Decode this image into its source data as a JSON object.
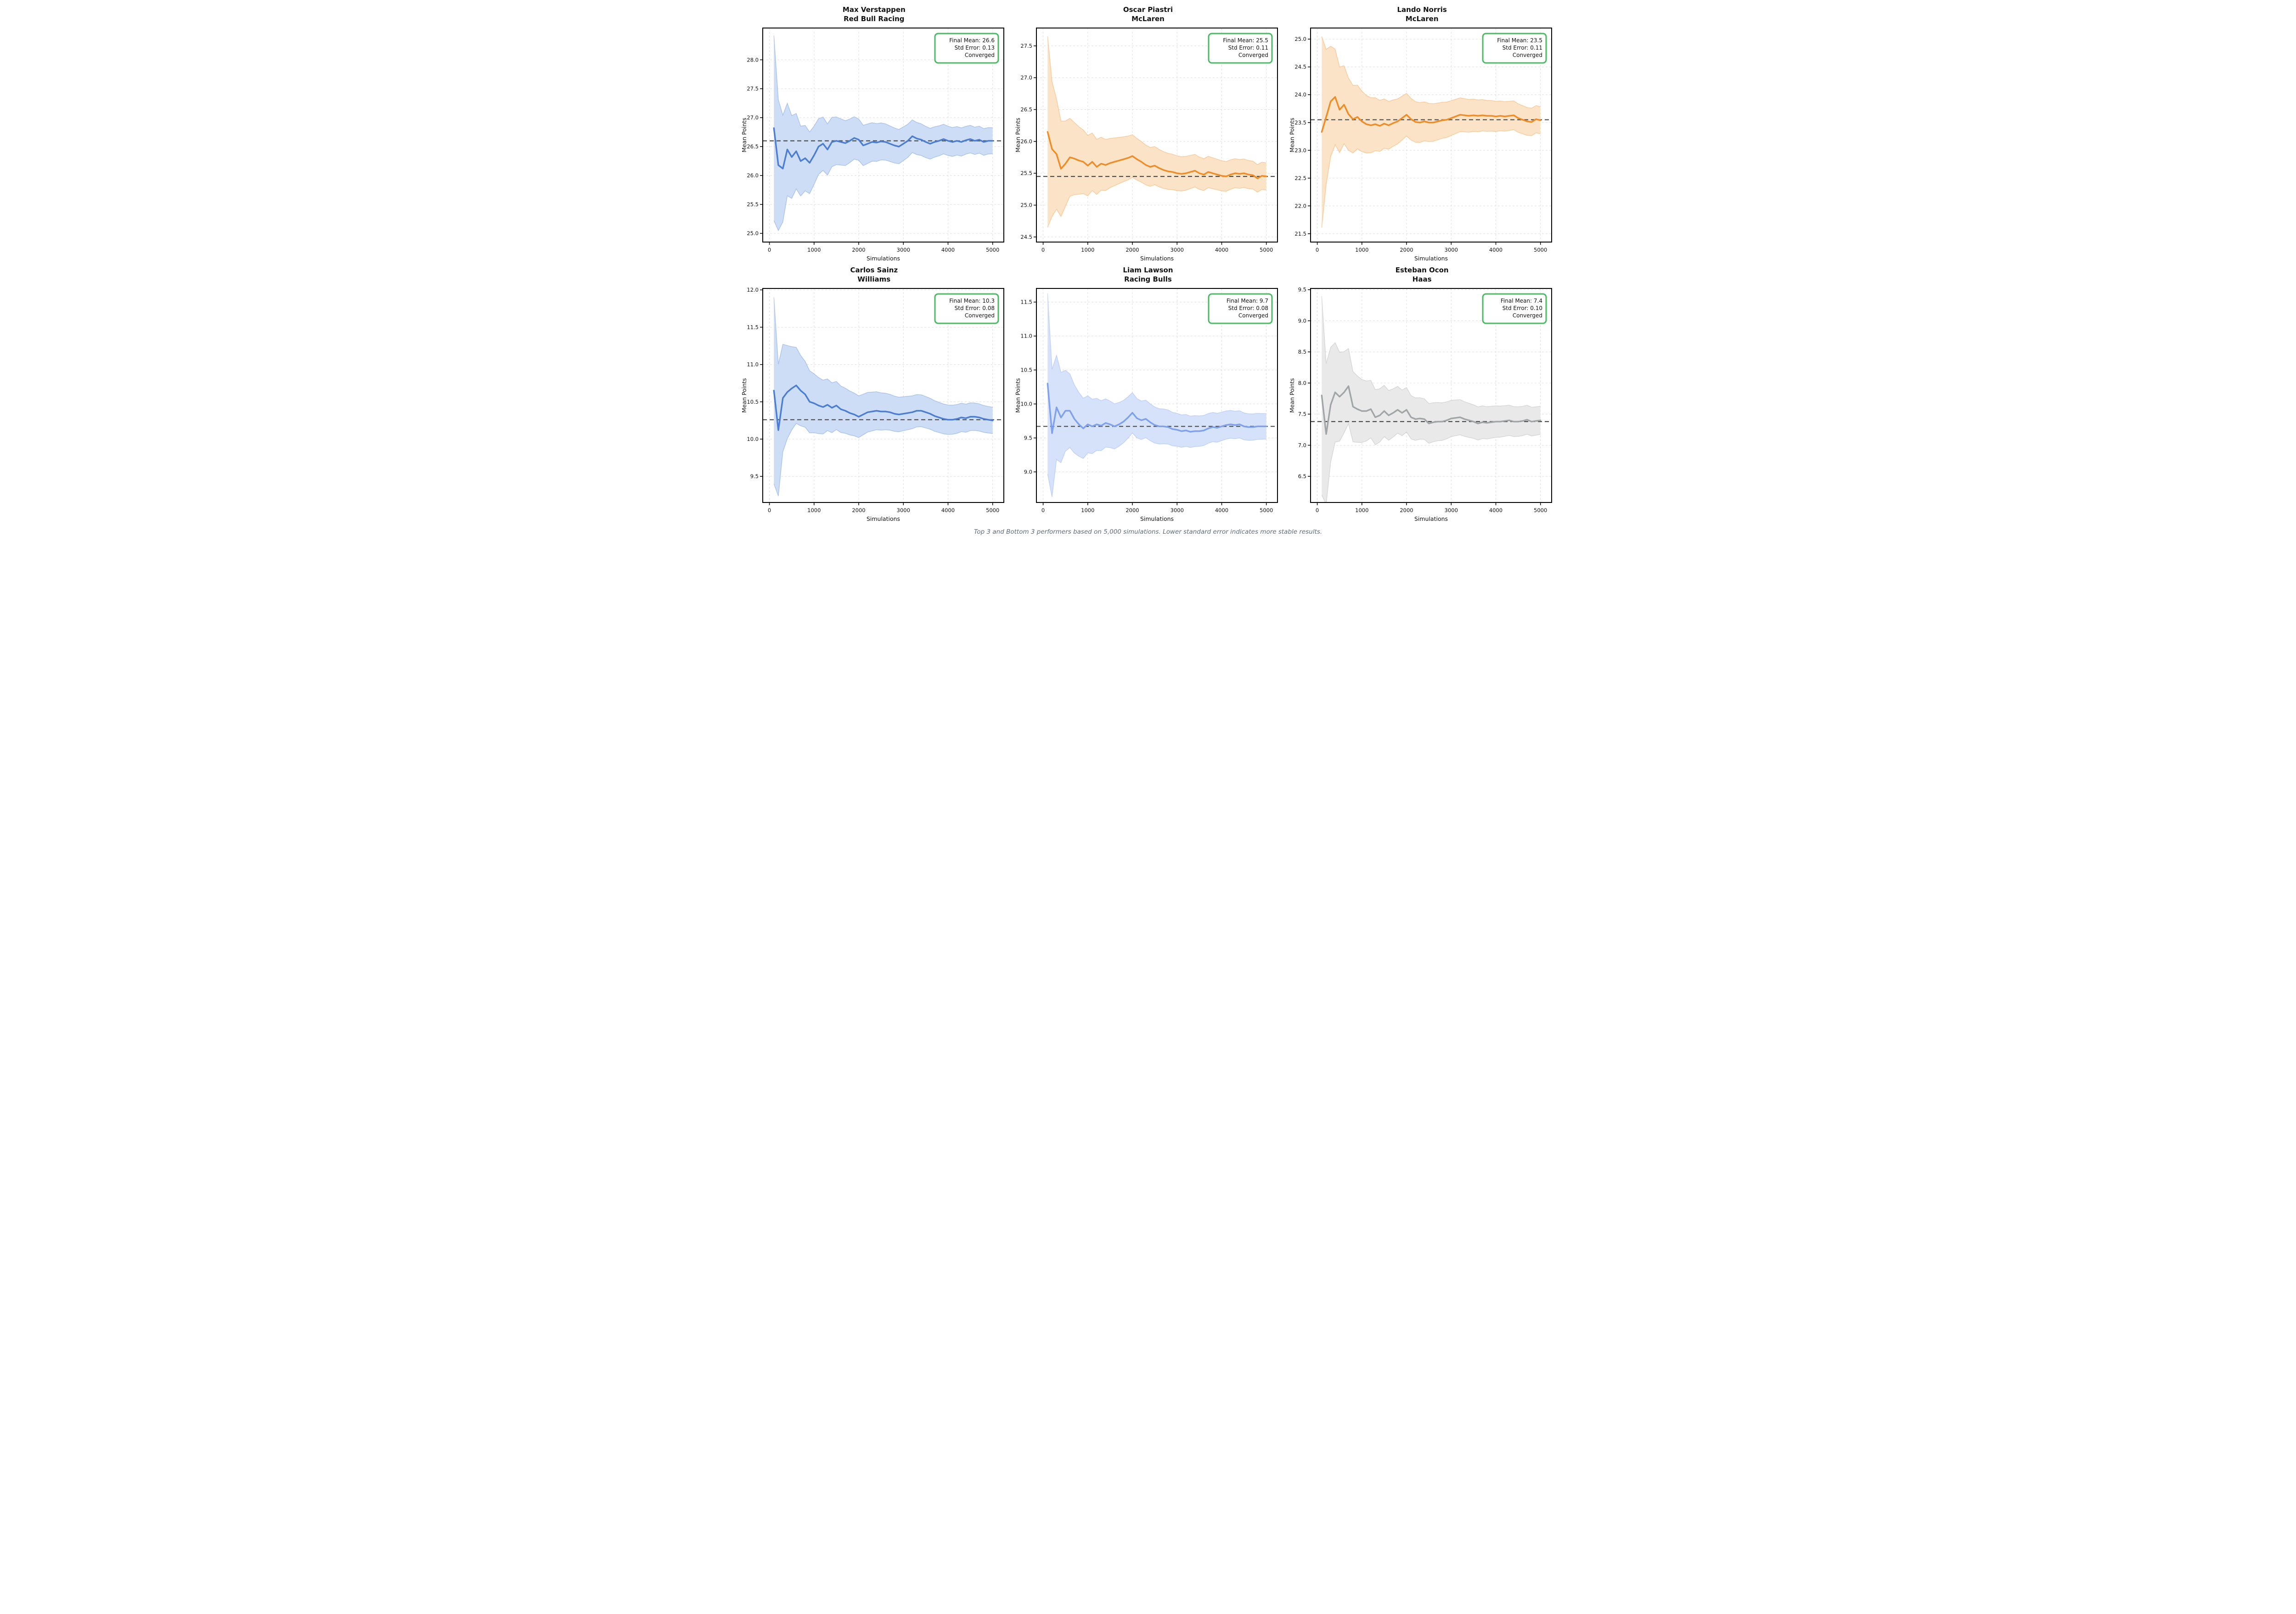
{
  "figure": {
    "xlabel": "Simulations",
    "ylabel": "Mean Points",
    "caption": "Top 3 and Bottom 3 performers based on 5,000 simulations. Lower standard error indicates more stable results.",
    "annotation_border_color": "#4cb963",
    "dashed_line_color": "#4d4d4d",
    "grid_color": "#dedede"
  },
  "chart_data": [
    {
      "type": "line",
      "driver": "Max Verstappen",
      "team": "Red Bull Racing",
      "annotation_lines": [
        "Final Mean: 26.6",
        "Std Error: 0.13",
        "Converged"
      ],
      "final_mean": 26.6,
      "std_error": 0.13,
      "converged": true,
      "dashed_value": 26.6,
      "line_color": "#4b7dd3",
      "band_color": "#cdddf5",
      "band_k": 16,
      "xlim": [
        -150,
        5250
      ],
      "xticks": [
        0,
        1000,
        2000,
        3000,
        4000,
        5000
      ],
      "ylim": [
        24.85,
        28.55
      ],
      "yticks": [
        25.0,
        25.5,
        26.0,
        26.5,
        27.0,
        27.5,
        28.0
      ],
      "x": [
        100,
        200,
        300,
        400,
        500,
        600,
        700,
        800,
        900,
        1000,
        1100,
        1200,
        1300,
        1400,
        1500,
        1600,
        1700,
        1800,
        1900,
        2000,
        2100,
        2200,
        2300,
        2400,
        2500,
        2600,
        2700,
        2800,
        2900,
        3000,
        3100,
        3200,
        3300,
        3400,
        3500,
        3600,
        3700,
        3800,
        3900,
        4000,
        4100,
        4200,
        4300,
        4400,
        4500,
        4600,
        4700,
        4800,
        4900,
        5000
      ],
      "mean": [
        26.82,
        26.18,
        26.12,
        26.45,
        26.32,
        26.42,
        26.25,
        26.3,
        26.22,
        26.35,
        26.5,
        26.55,
        26.45,
        26.58,
        26.6,
        26.58,
        26.56,
        26.6,
        26.65,
        26.62,
        26.52,
        26.55,
        26.58,
        26.57,
        26.59,
        26.58,
        26.55,
        26.52,
        26.5,
        26.55,
        26.6,
        26.68,
        26.64,
        26.62,
        26.58,
        26.55,
        26.58,
        26.6,
        26.63,
        26.6,
        26.58,
        26.6,
        26.58,
        26.61,
        26.63,
        26.6,
        26.62,
        26.58,
        26.6,
        26.6
      ]
    },
    {
      "type": "line",
      "driver": "Oscar Piastri",
      "team": "McLaren",
      "annotation_lines": [
        "Final Mean: 25.5",
        "Std Error: 0.11",
        "Converged"
      ],
      "final_mean": 25.5,
      "std_error": 0.11,
      "converged": true,
      "dashed_value": 25.45,
      "line_color": "#f08c28",
      "band_color": "#fbe3c8",
      "band_k": 15,
      "xlim": [
        -150,
        5250
      ],
      "xticks": [
        0,
        1000,
        2000,
        3000,
        4000,
        5000
      ],
      "ylim": [
        24.42,
        27.78
      ],
      "yticks": [
        24.5,
        25.0,
        25.5,
        26.0,
        26.5,
        27.0,
        27.5
      ],
      "x": [
        100,
        200,
        300,
        400,
        500,
        600,
        700,
        800,
        900,
        1000,
        1100,
        1200,
        1300,
        1400,
        1500,
        1600,
        1700,
        1800,
        1900,
        2000,
        2100,
        2200,
        2300,
        2400,
        2500,
        2600,
        2700,
        2800,
        2900,
        3000,
        3100,
        3200,
        3300,
        3400,
        3500,
        3600,
        3700,
        3800,
        3900,
        4000,
        4100,
        4200,
        4300,
        4400,
        4500,
        4600,
        4700,
        4800,
        4900,
        5000
      ],
      "mean": [
        26.15,
        25.88,
        25.8,
        25.57,
        25.65,
        25.75,
        25.73,
        25.7,
        25.68,
        25.62,
        25.68,
        25.6,
        25.65,
        25.63,
        25.66,
        25.68,
        25.7,
        25.72,
        25.74,
        25.77,
        25.72,
        25.68,
        25.63,
        25.6,
        25.62,
        25.58,
        25.55,
        25.53,
        25.52,
        25.5,
        25.49,
        25.5,
        25.52,
        25.54,
        25.5,
        25.48,
        25.52,
        25.5,
        25.48,
        25.46,
        25.45,
        25.48,
        25.5,
        25.49,
        25.5,
        25.48,
        25.47,
        25.42,
        25.46,
        25.45
      ]
    },
    {
      "type": "line",
      "driver": "Lando Norris",
      "team": "McLaren",
      "annotation_lines": [
        "Final Mean: 23.5",
        "Std Error: 0.11",
        "Converged"
      ],
      "final_mean": 23.5,
      "std_error": 0.11,
      "converged": true,
      "dashed_value": 23.55,
      "line_color": "#f08c28",
      "band_color": "#fbe3c8",
      "band_k": 17.2,
      "xlim": [
        -150,
        5250
      ],
      "xticks": [
        0,
        1000,
        2000,
        3000,
        4000,
        5000
      ],
      "ylim": [
        21.35,
        25.2
      ],
      "yticks": [
        21.5,
        22.0,
        22.5,
        23.0,
        23.5,
        24.0,
        24.5,
        25.0
      ],
      "x": [
        100,
        200,
        300,
        400,
        500,
        600,
        700,
        800,
        900,
        1000,
        1100,
        1200,
        1300,
        1400,
        1500,
        1600,
        1700,
        1800,
        1900,
        2000,
        2100,
        2200,
        2300,
        2400,
        2500,
        2600,
        2700,
        2800,
        2900,
        3000,
        3100,
        3200,
        3300,
        3400,
        3500,
        3600,
        3700,
        3800,
        3900,
        4000,
        4100,
        4200,
        4300,
        4400,
        4500,
        4600,
        4700,
        4800,
        4900,
        5000
      ],
      "mean": [
        23.33,
        23.6,
        23.88,
        23.96,
        23.73,
        23.82,
        23.65,
        23.56,
        23.6,
        23.52,
        23.47,
        23.45,
        23.47,
        23.44,
        23.48,
        23.45,
        23.49,
        23.52,
        23.58,
        23.64,
        23.56,
        23.51,
        23.5,
        23.52,
        23.5,
        23.5,
        23.52,
        23.54,
        23.55,
        23.58,
        23.61,
        23.64,
        23.63,
        23.62,
        23.63,
        23.62,
        23.63,
        23.62,
        23.62,
        23.61,
        23.62,
        23.61,
        23.62,
        23.63,
        23.58,
        23.55,
        23.52,
        23.51,
        23.56,
        23.54
      ]
    },
    {
      "type": "line",
      "driver": "Carlos Sainz",
      "team": "Williams",
      "annotation_lines": [
        "Final Mean: 10.3",
        "Std Error: 0.08",
        "Converged"
      ],
      "final_mean": 10.3,
      "std_error": 0.08,
      "converged": true,
      "dashed_value": 10.26,
      "line_color": "#4b7dd3",
      "band_color": "#cdddf5",
      "band_k": 12.5,
      "xlim": [
        -150,
        5250
      ],
      "xticks": [
        0,
        1000,
        2000,
        3000,
        4000,
        5000
      ],
      "ylim": [
        9.15,
        12.02
      ],
      "yticks": [
        9.5,
        10.0,
        10.5,
        11.0,
        11.5,
        12.0
      ],
      "x": [
        100,
        200,
        300,
        400,
        500,
        600,
        700,
        800,
        900,
        1000,
        1100,
        1200,
        1300,
        1400,
        1500,
        1600,
        1700,
        1800,
        1900,
        2000,
        2100,
        2200,
        2300,
        2400,
        2500,
        2600,
        2700,
        2800,
        2900,
        3000,
        3100,
        3200,
        3300,
        3400,
        3500,
        3600,
        3700,
        3800,
        3900,
        4000,
        4100,
        4200,
        4300,
        4400,
        4500,
        4600,
        4700,
        4800,
        4900,
        5000
      ],
      "mean": [
        10.65,
        10.12,
        10.55,
        10.63,
        10.68,
        10.72,
        10.65,
        10.6,
        10.5,
        10.48,
        10.45,
        10.43,
        10.46,
        10.42,
        10.45,
        10.4,
        10.38,
        10.35,
        10.33,
        10.3,
        10.33,
        10.36,
        10.37,
        10.38,
        10.37,
        10.37,
        10.36,
        10.34,
        10.33,
        10.34,
        10.35,
        10.36,
        10.38,
        10.38,
        10.36,
        10.34,
        10.31,
        10.29,
        10.27,
        10.26,
        10.26,
        10.27,
        10.29,
        10.28,
        10.3,
        10.3,
        10.29,
        10.27,
        10.26,
        10.25
      ]
    },
    {
      "type": "line",
      "driver": "Liam Lawson",
      "team": "Racing Bulls",
      "annotation_lines": [
        "Final Mean: 9.7",
        "Std Error: 0.08",
        "Converged"
      ],
      "final_mean": 9.7,
      "std_error": 0.08,
      "converged": true,
      "dashed_value": 9.67,
      "line_color": "#7da0ef",
      "band_color": "#d6e1fa",
      "band_k": 13.3,
      "xlim": [
        -150,
        5250
      ],
      "xticks": [
        0,
        1000,
        2000,
        3000,
        4000,
        5000
      ],
      "ylim": [
        8.55,
        11.7
      ],
      "yticks": [
        9.0,
        9.5,
        10.0,
        10.5,
        11.0,
        11.5
      ],
      "x": [
        100,
        200,
        300,
        400,
        500,
        600,
        700,
        800,
        900,
        1000,
        1100,
        1200,
        1300,
        1400,
        1500,
        1600,
        1700,
        1800,
        1900,
        2000,
        2100,
        2200,
        2300,
        2400,
        2500,
        2600,
        2700,
        2800,
        2900,
        3000,
        3100,
        3200,
        3300,
        3400,
        3500,
        3600,
        3700,
        3800,
        3900,
        4000,
        4100,
        4200,
        4300,
        4400,
        4500,
        4600,
        4700,
        4800,
        4900,
        5000
      ],
      "mean": [
        10.3,
        9.57,
        9.95,
        9.8,
        9.9,
        9.9,
        9.78,
        9.7,
        9.64,
        9.7,
        9.67,
        9.7,
        9.68,
        9.72,
        9.7,
        9.67,
        9.7,
        9.74,
        9.8,
        9.87,
        9.79,
        9.76,
        9.78,
        9.73,
        9.69,
        9.67,
        9.67,
        9.66,
        9.63,
        9.62,
        9.6,
        9.61,
        9.59,
        9.6,
        9.6,
        9.61,
        9.64,
        9.66,
        9.65,
        9.67,
        9.69,
        9.7,
        9.69,
        9.7,
        9.67,
        9.66,
        9.66,
        9.67,
        9.67,
        9.67
      ]
    },
    {
      "type": "line",
      "driver": "Esteban Ocon",
      "team": "Haas",
      "annotation_lines": [
        "Final Mean: 7.4",
        "Std Error: 0.10",
        "Converged"
      ],
      "final_mean": 7.4,
      "std_error": 0.1,
      "converged": true,
      "dashed_value": 7.38,
      "line_color": "#a0a5a8",
      "band_color": "#e9e9e9",
      "band_k": 16,
      "xlim": [
        -150,
        5250
      ],
      "xticks": [
        0,
        1000,
        2000,
        3000,
        4000,
        5000
      ],
      "ylim": [
        6.08,
        9.52
      ],
      "yticks": [
        6.5,
        7.0,
        7.5,
        8.0,
        8.5,
        9.0,
        9.5
      ],
      "x": [
        100,
        200,
        300,
        400,
        500,
        600,
        700,
        800,
        900,
        1000,
        1100,
        1200,
        1300,
        1400,
        1500,
        1600,
        1700,
        1800,
        1900,
        2000,
        2100,
        2200,
        2300,
        2400,
        2500,
        2600,
        2700,
        2800,
        2900,
        3000,
        3100,
        3200,
        3300,
        3400,
        3500,
        3600,
        3700,
        3800,
        3900,
        4000,
        4100,
        4200,
        4300,
        4400,
        4500,
        4600,
        4700,
        4800,
        4900,
        5000
      ],
      "mean": [
        7.8,
        7.18,
        7.65,
        7.85,
        7.78,
        7.85,
        7.95,
        7.62,
        7.58,
        7.55,
        7.55,
        7.58,
        7.45,
        7.48,
        7.55,
        7.48,
        7.52,
        7.57,
        7.52,
        7.57,
        7.45,
        7.42,
        7.43,
        7.42,
        7.35,
        7.37,
        7.38,
        7.38,
        7.4,
        7.43,
        7.44,
        7.45,
        7.42,
        7.4,
        7.38,
        7.35,
        7.37,
        7.36,
        7.37,
        7.38,
        7.38,
        7.39,
        7.4,
        7.38,
        7.38,
        7.39,
        7.41,
        7.38,
        7.39,
        7.4
      ]
    }
  ]
}
